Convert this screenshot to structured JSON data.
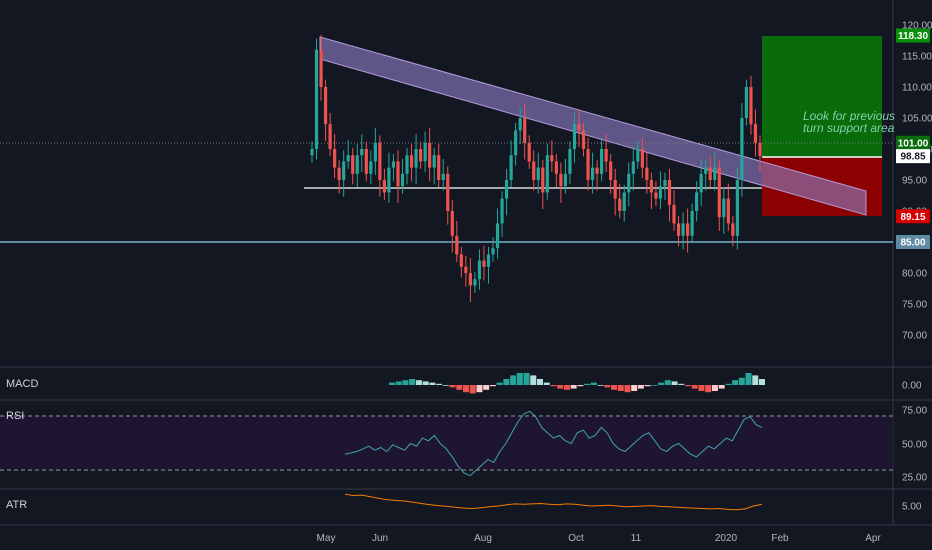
{
  "panes": {
    "macd": "MACD",
    "rsi": "RSI",
    "atr": "ATR"
  },
  "annotation": {
    "line1": "Look for previous resis",
    "line2": "turn support area for y"
  },
  "colors": {
    "bg": "#131722",
    "up": "#26a69a",
    "down": "#ef5350",
    "grid": "#363a45",
    "channel": "#8e7cc3",
    "target": "#0a6b0a",
    "stop": "#8b0000",
    "rsi": "#3fa3b0",
    "atr": "#f57c00"
  },
  "chart_data": {
    "type": "candlestick",
    "y_ticks": [
      "70.00",
      "75.00",
      "80.00",
      "85.00",
      "90.00",
      "95.00",
      "100.00",
      "105.00",
      "110.00",
      "115.00",
      "120.00"
    ],
    "ylim": [
      66,
      122
    ],
    "x_labels": [
      "May",
      "Jun",
      "Aug",
      "Oct",
      "11",
      "2020",
      "Feb",
      "Apr"
    ],
    "price_labels": [
      {
        "value": 118.3,
        "text": "118.30",
        "color": "#0a8f0a"
      },
      {
        "value": 101.0,
        "text": "101.00",
        "color": "#0a6b0a"
      },
      {
        "value": 98.85,
        "text": "98.85",
        "color": "#ffffff"
      },
      {
        "value": 89.15,
        "text": "89.15",
        "color": "#d50000"
      },
      {
        "value": 85.0,
        "text": "85.00",
        "color": "#5f8aa3"
      }
    ],
    "levels": {
      "support": 85.0,
      "horizontal": 93.5,
      "current": 101.0
    },
    "position": {
      "entry": 98.85,
      "target": 118.3,
      "stop": 89.15
    },
    "close": [
      100,
      116,
      110,
      104,
      100,
      97,
      95,
      98,
      99,
      96,
      99,
      100,
      96,
      98,
      101,
      95,
      93,
      97,
      98,
      94,
      96,
      99,
      97,
      100,
      98,
      101,
      97,
      99,
      95,
      96,
      90,
      86,
      83,
      81,
      80,
      78,
      79,
      82,
      81,
      83,
      84,
      88,
      92,
      95,
      99,
      103,
      105,
      101,
      98,
      95,
      97,
      93,
      99,
      98,
      96,
      94,
      96,
      100,
      104,
      103,
      100,
      95,
      97,
      96,
      100,
      98,
      95,
      92,
      90,
      93,
      96,
      98,
      100,
      97,
      95,
      93,
      92,
      94,
      95,
      91,
      88,
      86,
      88,
      86,
      90,
      93,
      96,
      97,
      95,
      97,
      89,
      92,
      88,
      86,
      95,
      105,
      110,
      104,
      101,
      98.85
    ],
    "macd": {
      "ylim": [
        -1.2,
        1.2
      ],
      "ticks": [
        "0.00"
      ],
      "hist": [
        0.2,
        0.3,
        0.4,
        0.5,
        0.4,
        0.3,
        0.2,
        0.1,
        0.0,
        -0.2,
        -0.4,
        -0.6,
        -0.7,
        -0.6,
        -0.4,
        -0.1,
        0.2,
        0.5,
        0.8,
        1.0,
        1.0,
        0.8,
        0.5,
        0.2,
        -0.1,
        -0.3,
        -0.4,
        -0.3,
        -0.1,
        0.1,
        0.2,
        0.0,
        -0.2,
        -0.4,
        -0.5,
        -0.6,
        -0.5,
        -0.3,
        -0.1,
        0.0,
        0.2,
        0.4,
        0.3,
        0.1,
        -0.1,
        -0.3,
        -0.5,
        -0.6,
        -0.5,
        -0.3,
        0.1,
        0.4,
        0.6,
        1.0,
        0.8,
        0.5
      ]
    },
    "rsi": {
      "ylim": [
        15,
        85
      ],
      "ticks": [
        "25.00",
        "50.00",
        "75.00"
      ],
      "bands": [
        30,
        70
      ],
      "values": [
        42,
        43,
        44,
        46,
        48,
        45,
        47,
        44,
        49,
        47,
        45,
        50,
        48,
        54,
        52,
        56,
        50,
        46,
        40,
        33,
        28,
        26,
        30,
        34,
        38,
        36,
        44,
        50,
        58,
        66,
        72,
        74,
        70,
        62,
        58,
        54,
        56,
        52,
        50,
        58,
        60,
        54,
        56,
        62,
        58,
        50,
        46,
        44,
        48,
        52,
        56,
        58,
        52,
        46,
        44,
        48,
        50,
        46,
        42,
        40,
        44,
        48,
        46,
        50,
        54,
        52,
        60,
        68,
        70,
        64,
        62
      ]
    },
    "atr": {
      "ylim": [
        2.5,
        9
      ],
      "ticks": [
        "5.00"
      ],
      "values": [
        7.8,
        7.5,
        7.6,
        7.2,
        6.8,
        6.5,
        6.3,
        6.2,
        5.9,
        5.6,
        5.3,
        5.1,
        4.9,
        4.7,
        4.5,
        4.4,
        4.6,
        4.8,
        5.0,
        5.3,
        5.5,
        5.4,
        5.5,
        5.6,
        5.4,
        5.3,
        5.5,
        5.4,
        5.2,
        5.0,
        5.1,
        5.2,
        5.0,
        4.8,
        4.9,
        5.0,
        5.1,
        4.9,
        4.8,
        4.7,
        4.6,
        4.5,
        4.4,
        4.3,
        4.4,
        4.2,
        4.1,
        4.3,
        5.0,
        5.4
      ]
    }
  }
}
